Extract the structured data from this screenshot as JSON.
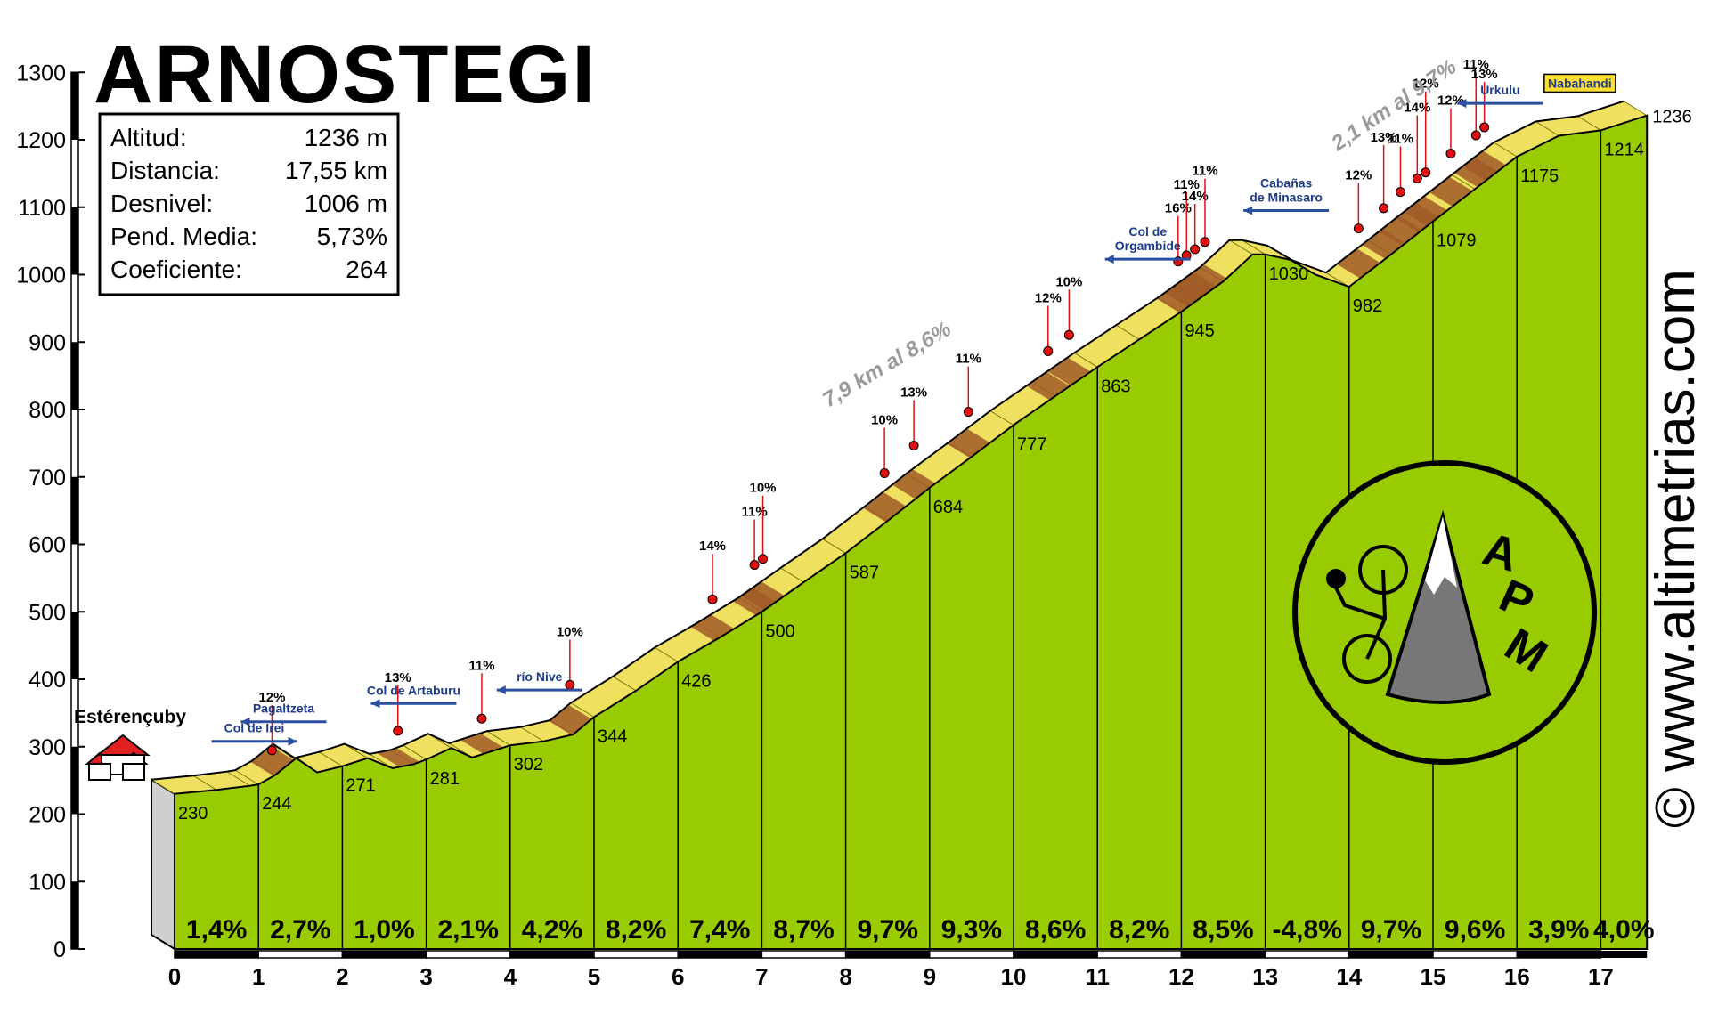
{
  "title": "ARNOSTEGI",
  "stats": [
    {
      "label": "Altitud:",
      "value": "1236 m"
    },
    {
      "label": "Distancia:",
      "value": "17,55 km"
    },
    {
      "label": "Desnivel:",
      "value": "1006 m"
    },
    {
      "label": "Pend. Media:",
      "value": "5,73%"
    },
    {
      "label": "Coeficiente:",
      "value": "264"
    }
  ],
  "watermark": "© www.altimetrias.com",
  "logo_text": [
    "A",
    "P",
    "M"
  ],
  "start_place": "Estérençuby",
  "summit_place": "Nabahandi",
  "notes": [
    {
      "id": "note1",
      "text": "7,9 km al 8,6%"
    },
    {
      "id": "note2",
      "text": "2,1 km al 9,7%"
    }
  ],
  "colors": {
    "fill": "#99cc00",
    "road": "#f0e060",
    "steep": "#a05a28",
    "marker": "#e01010",
    "sign": "#2b4fa0"
  },
  "chart_data": {
    "type": "area",
    "xlim": [
      0,
      17.55
    ],
    "ylim": [
      0,
      1300
    ],
    "x_ticks": [
      0,
      1,
      2,
      3,
      4,
      5,
      6,
      7,
      8,
      9,
      10,
      11,
      12,
      13,
      14,
      15,
      16,
      17
    ],
    "y_ticks": [
      0,
      100,
      200,
      300,
      400,
      500,
      600,
      700,
      800,
      900,
      1000,
      1100,
      1200,
      1300
    ],
    "km": [
      0,
      1,
      2,
      3,
      4,
      5,
      6,
      7,
      8,
      9,
      10,
      11,
      12,
      13,
      14,
      15,
      16,
      17,
      17.55
    ],
    "altitude": [
      230,
      244,
      271,
      281,
      302,
      344,
      426,
      500,
      587,
      684,
      777,
      863,
      945,
      1030,
      982,
      1079,
      1175,
      1214,
      1236
    ],
    "altitude_labels": [
      "230",
      "244",
      "271",
      "281",
      "302",
      "344",
      "426",
      "500",
      "587",
      "684",
      "777",
      "863",
      "945",
      "1030",
      "982",
      "1079",
      "1175",
      "1214",
      "1236"
    ],
    "profile": [
      [
        0,
        230
      ],
      [
        0.5,
        236
      ],
      [
        0.9,
        242
      ],
      [
        1.0,
        244
      ],
      [
        1.2,
        258
      ],
      [
        1.45,
        283
      ],
      [
        1.7,
        262
      ],
      [
        2.0,
        271
      ],
      [
        2.3,
        283
      ],
      [
        2.6,
        268
      ],
      [
        2.85,
        274
      ],
      [
        3.0,
        281
      ],
      [
        3.3,
        298
      ],
      [
        3.55,
        284
      ],
      [
        4.0,
        302
      ],
      [
        4.4,
        308
      ],
      [
        4.75,
        318
      ],
      [
        5.0,
        344
      ],
      [
        5.5,
        383
      ],
      [
        6.0,
        426
      ],
      [
        6.5,
        462
      ],
      [
        7.0,
        500
      ],
      [
        7.5,
        544
      ],
      [
        8.0,
        587
      ],
      [
        8.5,
        635
      ],
      [
        9.0,
        684
      ],
      [
        9.5,
        730
      ],
      [
        10.0,
        777
      ],
      [
        10.5,
        820
      ],
      [
        11.0,
        863
      ],
      [
        11.5,
        904
      ],
      [
        12.0,
        945
      ],
      [
        12.5,
        990
      ],
      [
        12.85,
        1030
      ],
      [
        13.0,
        1030
      ],
      [
        13.3,
        1022
      ],
      [
        13.6,
        1000
      ],
      [
        14.0,
        982
      ],
      [
        14.5,
        1030
      ],
      [
        15.0,
        1079
      ],
      [
        15.5,
        1127
      ],
      [
        16.0,
        1175
      ],
      [
        16.5,
        1206
      ],
      [
        17.0,
        1214
      ],
      [
        17.55,
        1236
      ]
    ],
    "gradients": [
      "1,4%",
      "2,7%",
      "1,0%",
      "2,1%",
      "4,2%",
      "8,2%",
      "7,4%",
      "8,7%",
      "9,7%",
      "9,3%",
      "8,6%",
      "8,2%",
      "8,5%",
      "-4,8%",
      "9,7%",
      "9,6%",
      "3,9%",
      "4,0%"
    ],
    "steep_points": [
      {
        "km": 1.3,
        "alt": 284,
        "label": "12%"
      },
      {
        "km": 2.8,
        "alt": 313,
        "label": "13%"
      },
      {
        "km": 3.8,
        "alt": 331,
        "label": "11%"
      },
      {
        "km": 4.85,
        "alt": 381,
        "label": "10%"
      },
      {
        "km": 6.55,
        "alt": 508,
        "label": "14%"
      },
      {
        "km": 7.05,
        "alt": 559,
        "label": "11%"
      },
      {
        "km": 7.15,
        "alt": 568,
        "label": "10%"
      },
      {
        "km": 8.6,
        "alt": 695,
        "label": "10%"
      },
      {
        "km": 8.95,
        "alt": 736,
        "label": "13%"
      },
      {
        "km": 9.6,
        "alt": 786,
        "label": "11%"
      },
      {
        "km": 10.55,
        "alt": 876,
        "label": "12%"
      },
      {
        "km": 10.8,
        "alt": 900,
        "label": "10%"
      },
      {
        "km": 12.1,
        "alt": 1009,
        "label": "16%"
      },
      {
        "km": 12.2,
        "alt": 1018,
        "label": "11%"
      },
      {
        "km": 12.3,
        "alt": 1027,
        "label": "14%"
      },
      {
        "km": 12.42,
        "alt": 1038,
        "label": "11%"
      },
      {
        "km": 14.25,
        "alt": 1058,
        "label": "12%"
      },
      {
        "km": 14.55,
        "alt": 1088,
        "label": "13%"
      },
      {
        "km": 14.75,
        "alt": 1112,
        "label": "11%"
      },
      {
        "km": 14.95,
        "alt": 1132,
        "label": "14%"
      },
      {
        "km": 15.05,
        "alt": 1141,
        "label": "12%"
      },
      {
        "km": 15.35,
        "alt": 1169,
        "label": "12%"
      },
      {
        "km": 15.65,
        "alt": 1196,
        "label": "11%"
      },
      {
        "km": 15.75,
        "alt": 1208,
        "label": "13%"
      }
    ],
    "places": [
      {
        "name": "Col de Irei",
        "km": 0.95,
        "alt": 308,
        "dir": "right"
      },
      {
        "name": "Pagaltzeta",
        "km": 1.3,
        "alt": 337,
        "dir": "left"
      },
      {
        "name": "Col de Artaburu",
        "km": 2.85,
        "alt": 364,
        "dir": "left"
      },
      {
        "name": "río Nive",
        "km": 4.35,
        "alt": 384,
        "dir": "left"
      },
      {
        "name": "Col de Orgambide",
        "km": 11.6,
        "alt": 1023,
        "dir": "left",
        "lines": [
          "Col de",
          "Orgambide"
        ]
      },
      {
        "name": "Cabañas de Minasaro",
        "km": 13.25,
        "alt": 1095,
        "dir": "left",
        "lines": [
          "Cabañas",
          "de Minasaro"
        ]
      },
      {
        "name": "Urkulu",
        "km": 15.8,
        "alt": 1254,
        "dir": "left"
      }
    ]
  }
}
